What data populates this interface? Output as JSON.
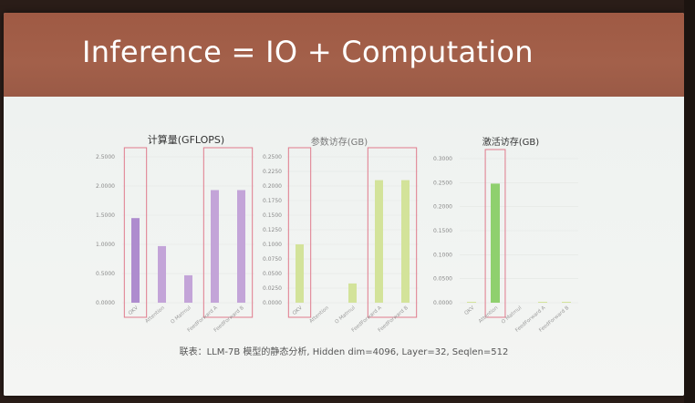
{
  "slide": {
    "title": "Inference = IO + Computation",
    "caption": "联表：LLM-7B 模型的静态分析, Hidden dim=4096, Layer=32, Seqlen=512"
  },
  "colors": {
    "purple": "#c3a4d8",
    "purple_highlight": "#ae8cce",
    "green": "#d3e39a",
    "green_highlight": "#8fd06e",
    "outline": "#e07a8c"
  },
  "chart_data": [
    {
      "type": "bar",
      "title": "计算量(GFLOPS)",
      "categories": [
        "QKV",
        "Attention",
        "O Matmul",
        "FeedForward A",
        "FeedForward B"
      ],
      "values": [
        1.45,
        0.97,
        0.47,
        1.93,
        1.93
      ],
      "yticks": [
        "0.0000",
        "0.5000",
        "1.0000",
        "1.5000",
        "2.0000",
        "2.5000"
      ],
      "ylim": [
        0,
        2.5
      ],
      "highlight": [
        0
      ],
      "outlined_groups": [
        [
          0
        ],
        [
          3,
          4
        ]
      ]
    },
    {
      "type": "bar",
      "title": "参数访存(GB)",
      "categories": [
        "QKV",
        "Attention",
        "O Matmul",
        "FeedForward A",
        "FeedForward B"
      ],
      "values": [
        0.1,
        0,
        0.033,
        0.21,
        0.21
      ],
      "yticks": [
        "0.0000",
        "0.0250",
        "0.0500",
        "0.0750",
        "0.1000",
        "0.1250",
        "0.1500",
        "0.1750",
        "0.2000",
        "0.2250",
        "0.2500"
      ],
      "ylim": [
        0,
        0.25
      ],
      "highlight": [],
      "outlined_groups": [
        [
          0
        ],
        [
          3,
          4
        ]
      ]
    },
    {
      "type": "bar",
      "title": "激活访存(GB)",
      "categories": [
        "QKV",
        "Attention",
        "O Matmul",
        "FeedForward A",
        "FeedForward B"
      ],
      "values": [
        0.001,
        0.248,
        0,
        0.001,
        0.001
      ],
      "yticks": [
        "0.0000",
        "0.0500",
        "0.1000",
        "0.1500",
        "0.2000",
        "0.2500",
        "0.3000"
      ],
      "ylim": [
        0,
        0.3
      ],
      "highlight": [
        1
      ],
      "outlined_groups": [
        [
          1
        ]
      ]
    }
  ]
}
